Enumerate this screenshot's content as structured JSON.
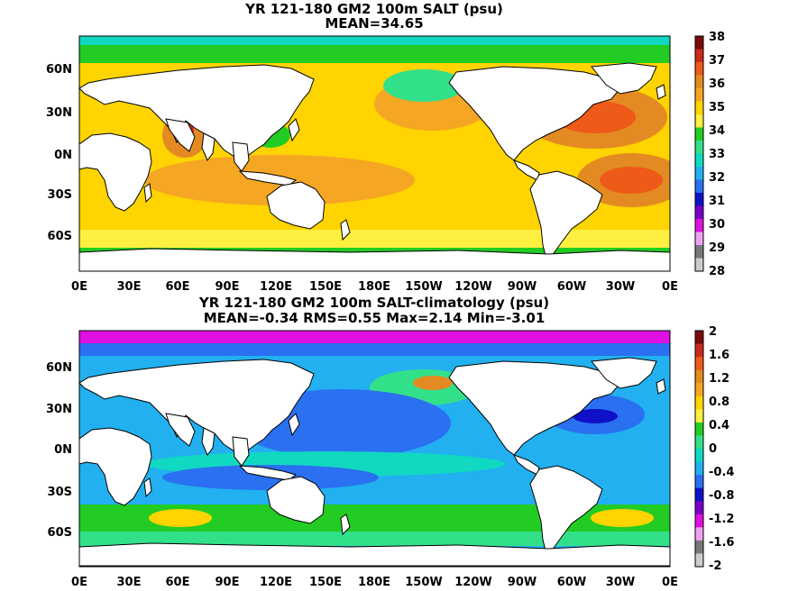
{
  "chart_data": [
    {
      "type": "heatmap",
      "title": "YR 121-180 GM2 100m SALT (psu)",
      "subtitle": "MEAN=34.65",
      "x_ticks": [
        "0E",
        "30E",
        "60E",
        "90E",
        "120E",
        "150E",
        "180E",
        "150W",
        "120W",
        "90W",
        "60W",
        "30W",
        "0E"
      ],
      "y_ticks": [
        "60N",
        "30N",
        "0N",
        "30S",
        "60S"
      ],
      "colorbar": {
        "labels": [
          "38",
          "37",
          "36",
          "35",
          "34",
          "33",
          "32",
          "31",
          "30",
          "29",
          "28"
        ],
        "colors": [
          "#7a0b0b",
          "#cc2a1a",
          "#ee5a18",
          "#e48a22",
          "#f5a623",
          "#ffd400",
          "#ffef40",
          "#22cc22",
          "#33e08a",
          "#11d8c0",
          "#22b0f0",
          "#2a70f0",
          "#1010c8",
          "#7a00c8",
          "#e010e0",
          "#f0a0f0",
          "#777777",
          "#cccccc"
        ]
      }
    },
    {
      "type": "heatmap",
      "title": "YR 121-180 GM2 100m SALT-climatology (psu)",
      "subtitle": "MEAN=-0.34   RMS=0.55   Max=2.14   Min=-3.01",
      "x_ticks": [
        "0E",
        "30E",
        "60E",
        "90E",
        "120E",
        "150E",
        "180E",
        "150W",
        "120W",
        "90W",
        "60W",
        "30W",
        "0E"
      ],
      "y_ticks": [
        "60N",
        "30N",
        "0N",
        "30S",
        "60S"
      ],
      "colorbar": {
        "labels": [
          "2",
          "1.6",
          "1.2",
          "0.8",
          "0.4",
          "0",
          "-0.4",
          "-0.8",
          "-1.2",
          "-1.6",
          "-2"
        ],
        "colors": [
          "#7a0b0b",
          "#cc2a1a",
          "#ee5a18",
          "#e48a22",
          "#f5a623",
          "#ffd400",
          "#ffef40",
          "#22cc22",
          "#33e08a",
          "#11d8c0",
          "#22b0f0",
          "#2a70f0",
          "#1010c8",
          "#7a00c8",
          "#e010e0",
          "#f0a0f0",
          "#777777",
          "#cccccc"
        ]
      }
    }
  ]
}
